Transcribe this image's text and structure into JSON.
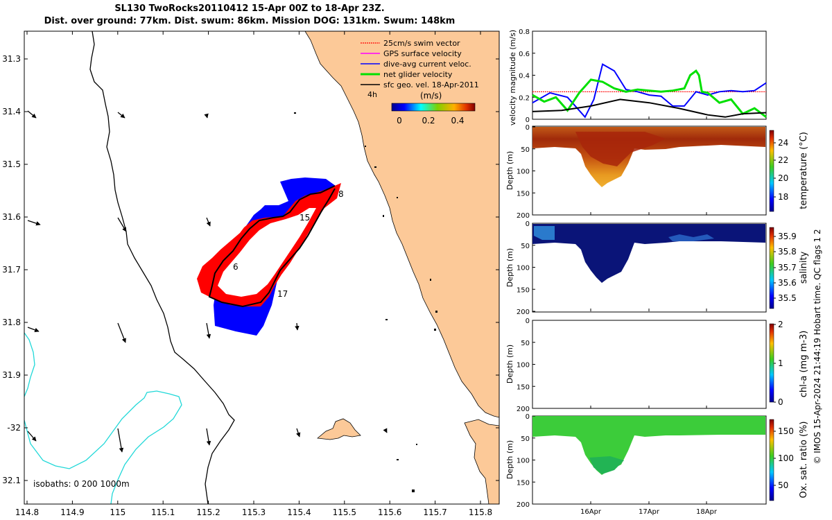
{
  "header": {
    "title_line1": "SL130 TwoRocks20110412 15-Apr 00Z to 18-Apr 23Z.",
    "title_line2": "Dist. over ground: 77km. Dist. swum: 86km. Mission DOG: 131km. Swum: 148km"
  },
  "map": {
    "legend": {
      "items": [
        {
          "label": "25cm/s swim vector",
          "color": "#ff0000"
        },
        {
          "label": "GPS surface velocity",
          "color": "#ff00ff"
        },
        {
          "label": "dive-avg current veloc.",
          "color": "#0000ff"
        },
        {
          "label": "net glider velocity",
          "color": "#00e000"
        },
        {
          "label": "sfc geo. vel. 18-Apr-2011",
          "color": "#000000"
        }
      ],
      "interval_label": "4h",
      "units_label": "(m/s)",
      "colorbar_ticks": [
        "0",
        "0.2",
        "0.4"
      ]
    },
    "lat_ticks": [
      "31.3",
      "31.4",
      "31.5",
      "31.6",
      "31.7",
      "31.8",
      "31.9",
      "-32",
      "32.1"
    ],
    "lon_ticks": [
      "114.8",
      "114.9",
      "115",
      "115.1",
      "115.2",
      "115.3",
      "115.4",
      "115.5",
      "115.6",
      "115.7",
      "115.8"
    ],
    "day_labels": [
      "6",
      "8",
      "15",
      "17"
    ],
    "isobath_label": "isobaths: 0   200  1000m",
    "colors": {
      "land": "#fcc998",
      "track": "#000000",
      "current": "#0000ff",
      "swim": "#ff0000",
      "isobath200": "#00d8d8"
    }
  },
  "panels": {
    "velocity": {
      "ylabel": "velocity magnitude (m/s)",
      "yticks": [
        "0",
        "0.2",
        "0.4",
        "0.6",
        "0.8"
      ]
    },
    "temperature": {
      "ylabel": "Depth (m)",
      "cbar_label": "temperature (°C)",
      "cbar_ticks": [
        "18",
        "20",
        "22",
        "24"
      ],
      "yticks": [
        "0",
        "50",
        "100",
        "150",
        "200"
      ]
    },
    "salinity": {
      "ylabel": "Depth (m)",
      "cbar_label": "salinity",
      "cbar_ticks": [
        "35.5",
        "35.6",
        "35.7",
        "35.8",
        "35.9"
      ],
      "yticks": [
        "0",
        "50",
        "100",
        "150",
        "200"
      ]
    },
    "chla": {
      "ylabel": "Depth (m)",
      "cbar_label": "chl-a (mg m-3)",
      "cbar_ticks": [
        "0",
        "1",
        "2"
      ],
      "yticks": [
        "0",
        "50",
        "100",
        "150",
        "200"
      ]
    },
    "oxygen": {
      "ylabel": "Depth (m)",
      "cbar_label": "Ox. sat. ratio (%)",
      "cbar_ticks": [
        "50",
        "100",
        "150"
      ],
      "yticks": [
        "0",
        "50",
        "100",
        "150",
        "200"
      ]
    },
    "time_ticks": [
      "16Apr",
      "17Apr",
      "18Apr"
    ]
  },
  "footer": {
    "credit": "© IMOS 15-Apr-2024 21:44:19 Hobart time. QC flags 1  2"
  },
  "chart_data": [
    {
      "type": "line",
      "title": "velocity magnitude",
      "ylabel": "velocity magnitude (m/s)",
      "ylim": [
        0,
        0.8
      ],
      "x_unit": "days since 15-Apr 00Z",
      "xlim": [
        0,
        4
      ],
      "series": [
        {
          "name": "swim speed",
          "color": "#ff0000",
          "x": [
            0,
            4
          ],
          "y": [
            0.25,
            0.25
          ]
        },
        {
          "name": "dive-avg current",
          "color": "#0000ff",
          "x": [
            0,
            0.3,
            0.6,
            0.9,
            1.05,
            1.2,
            1.4,
            1.6,
            1.8,
            2.0,
            2.2,
            2.4,
            2.6,
            2.8,
            3.0,
            3.2,
            3.4,
            3.6,
            3.8,
            4.0
          ],
          "y": [
            0.15,
            0.24,
            0.2,
            0.02,
            0.18,
            0.5,
            0.44,
            0.27,
            0.25,
            0.22,
            0.21,
            0.12,
            0.12,
            0.25,
            0.22,
            0.25,
            0.26,
            0.25,
            0.26,
            0.33
          ]
        },
        {
          "name": "net glider velocity",
          "color": "#00e000",
          "x": [
            0,
            0.2,
            0.4,
            0.6,
            0.8,
            1.0,
            1.2,
            1.4,
            1.6,
            1.8,
            2.0,
            2.2,
            2.4,
            2.6,
            2.7,
            2.8,
            2.85,
            2.9,
            3.0,
            3.2,
            3.4,
            3.6,
            3.8,
            4.0
          ],
          "y": [
            0.22,
            0.16,
            0.2,
            0.08,
            0.24,
            0.36,
            0.34,
            0.28,
            0.25,
            0.27,
            0.26,
            0.25,
            0.26,
            0.28,
            0.4,
            0.44,
            0.4,
            0.25,
            0.24,
            0.15,
            0.18,
            0.05,
            0.1,
            0.02
          ]
        },
        {
          "name": "sfc geo. vel.",
          "color": "#000000",
          "x": [
            0,
            0.5,
            1.0,
            1.5,
            2.0,
            2.5,
            3.0,
            3.3,
            3.6,
            4.0
          ],
          "y": [
            0.07,
            0.08,
            0.12,
            0.18,
            0.15,
            0.1,
            0.04,
            0.02,
            0.05,
            0.06
          ]
        }
      ]
    },
    {
      "type": "heatmap",
      "title": "temperature section",
      "ylabel": "Depth (m)",
      "ylim": [
        200,
        0
      ],
      "clim": [
        16.5,
        25
      ],
      "cbar_label": "temperature (°C)",
      "dive_depth_profile": {
        "x": [
          0,
          0.5,
          0.8,
          1.0,
          1.2,
          1.4,
          1.6,
          2.0,
          3.0,
          4.0
        ],
        "depth": [
          40,
          45,
          50,
          100,
          135,
          110,
          50,
          40,
          30,
          30
        ]
      }
    },
    {
      "type": "heatmap",
      "title": "salinity section",
      "ylabel": "Depth (m)",
      "ylim": [
        200,
        0
      ],
      "clim": [
        35.45,
        35.95
      ],
      "cbar_label": "salinity"
    },
    {
      "type": "heatmap",
      "title": "chl-a section",
      "ylabel": "Depth (m)",
      "ylim": [
        200,
        0
      ],
      "clim": [
        0,
        2
      ],
      "cbar_label": "chl-a (mg m-3)"
    },
    {
      "type": "heatmap",
      "title": "oxygen saturation section",
      "ylabel": "Depth (m)",
      "ylim": [
        200,
        0
      ],
      "clim": [
        20,
        175
      ],
      "cbar_label": "Ox. sat. ratio (%)"
    }
  ]
}
